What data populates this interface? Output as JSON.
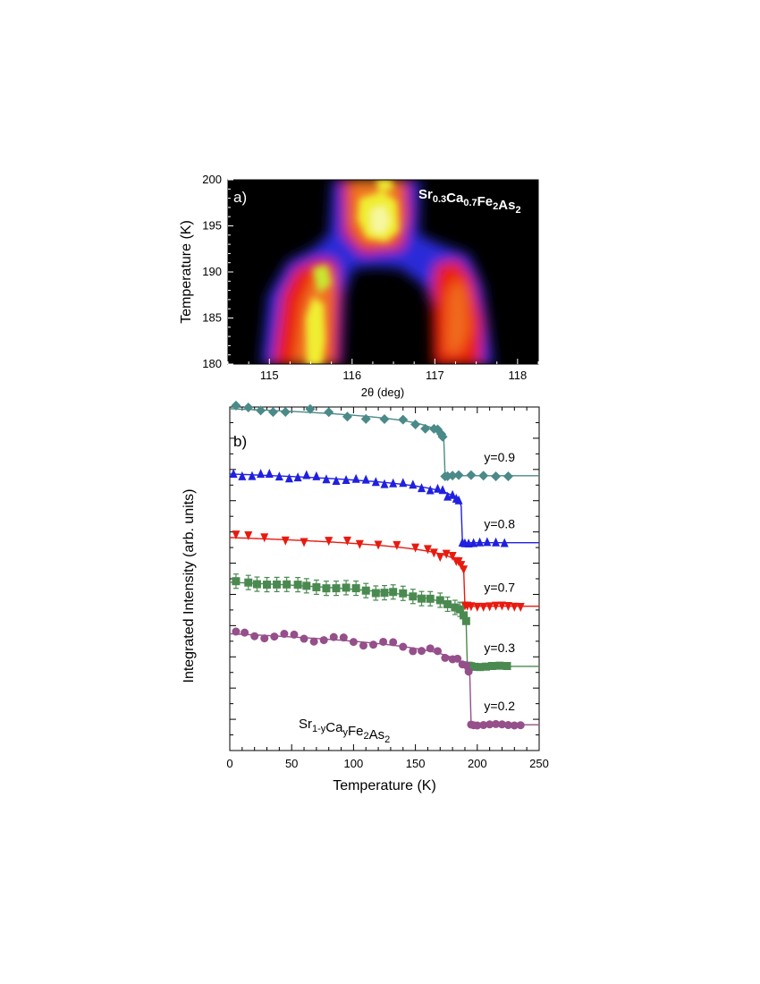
{
  "chart_data": [
    {
      "panel": "a)",
      "type": "heatmap",
      "compound": {
        "main": [
          "Sr",
          "Ca",
          "Fe",
          "As"
        ],
        "subs": [
          "0.3",
          "0.7",
          "2",
          "2"
        ]
      },
      "xlabel": "2θ (deg)",
      "ylabel": "Temperature (K)",
      "xlim": [
        114.5,
        118.25
      ],
      "ylim": [
        180,
        200
      ],
      "xticks": [
        115,
        116,
        117,
        118
      ],
      "yticks": [
        180,
        185,
        190,
        195,
        200
      ],
      "colors": {
        "background": "#000000",
        "low": "#2a2ad8",
        "mid": "#e81a10",
        "high": "#f0ee30",
        "peak": "#f7f7a0"
      }
    },
    {
      "panel": "b)",
      "type": "scatter",
      "compound": {
        "main": [
          "Sr",
          "Ca",
          "Fe",
          "As"
        ],
        "subs": [
          "1-y",
          "y",
          "2",
          "2"
        ]
      },
      "xlabel": "Temperature (K)",
      "ylabel": "Integrated Intensity (arb. units)",
      "xlim": [
        0,
        250
      ],
      "xticks": [
        0,
        50,
        100,
        150,
        200,
        250
      ],
      "ylim": [
        0,
        1
      ],
      "series": [
        {
          "name": "y=0.9",
          "color": "#4a8a88",
          "marker": "diamond",
          "Tc": 174,
          "offset": 0.8,
          "amp": 0.195,
          "xmax": 225,
          "x": [
            5,
            15,
            25,
            35,
            45,
            65,
            80,
            95,
            110,
            125,
            140,
            150,
            158,
            165,
            168,
            171,
            172,
            174,
            176,
            180,
            185,
            195,
            205,
            215,
            225
          ]
        },
        {
          "name": "y=0.8",
          "color": "#2020e0",
          "marker": "triangle-up",
          "Tc": 188,
          "offset": 0.605,
          "amp": 0.2,
          "xmax": 225,
          "x": [
            3,
            10,
            18,
            25,
            32,
            40,
            48,
            55,
            62,
            70,
            78,
            86,
            94,
            102,
            110,
            118,
            125,
            132,
            140,
            148,
            155,
            162,
            168,
            172,
            176,
            180,
            183,
            185,
            188,
            190,
            193,
            197,
            202,
            208,
            215,
            222
          ]
        },
        {
          "name": "y=0.7",
          "color": "#e81a10",
          "marker": "triangle-down",
          "Tc": 190,
          "offset": 0.42,
          "amp": 0.2,
          "xmax": 235,
          "x": [
            5,
            15,
            28,
            45,
            60,
            80,
            95,
            105,
            120,
            135,
            150,
            160,
            165,
            170,
            175,
            180,
            183,
            185,
            187,
            189,
            190,
            192,
            195,
            200,
            205,
            210,
            215,
            220,
            225,
            230,
            235
          ]
        },
        {
          "name": "y=0.3",
          "color": "#4a8a50",
          "marker": "square",
          "Tc": 192,
          "offset": 0.245,
          "amp": 0.245,
          "xmax": 225,
          "x": [
            5,
            15,
            22,
            30,
            38,
            46,
            55,
            62,
            70,
            78,
            86,
            94,
            102,
            110,
            118,
            125,
            132,
            140,
            148,
            155,
            162,
            170,
            176,
            182,
            186,
            189,
            191,
            193,
            195,
            198,
            202,
            207,
            212,
            218,
            224
          ]
        },
        {
          "name": "y=0.2",
          "color": "#954f8a",
          "marker": "circle",
          "Tc": 195,
          "offset": 0.075,
          "amp": 0.265,
          "xmax": 235,
          "x": [
            5,
            12,
            20,
            28,
            36,
            44,
            52,
            60,
            68,
            76,
            84,
            92,
            100,
            108,
            116,
            124,
            132,
            140,
            148,
            155,
            162,
            168,
            174,
            180,
            184,
            188,
            191,
            193,
            195,
            197,
            200,
            205,
            210,
            215,
            220,
            225,
            230,
            235
          ]
        }
      ]
    }
  ]
}
